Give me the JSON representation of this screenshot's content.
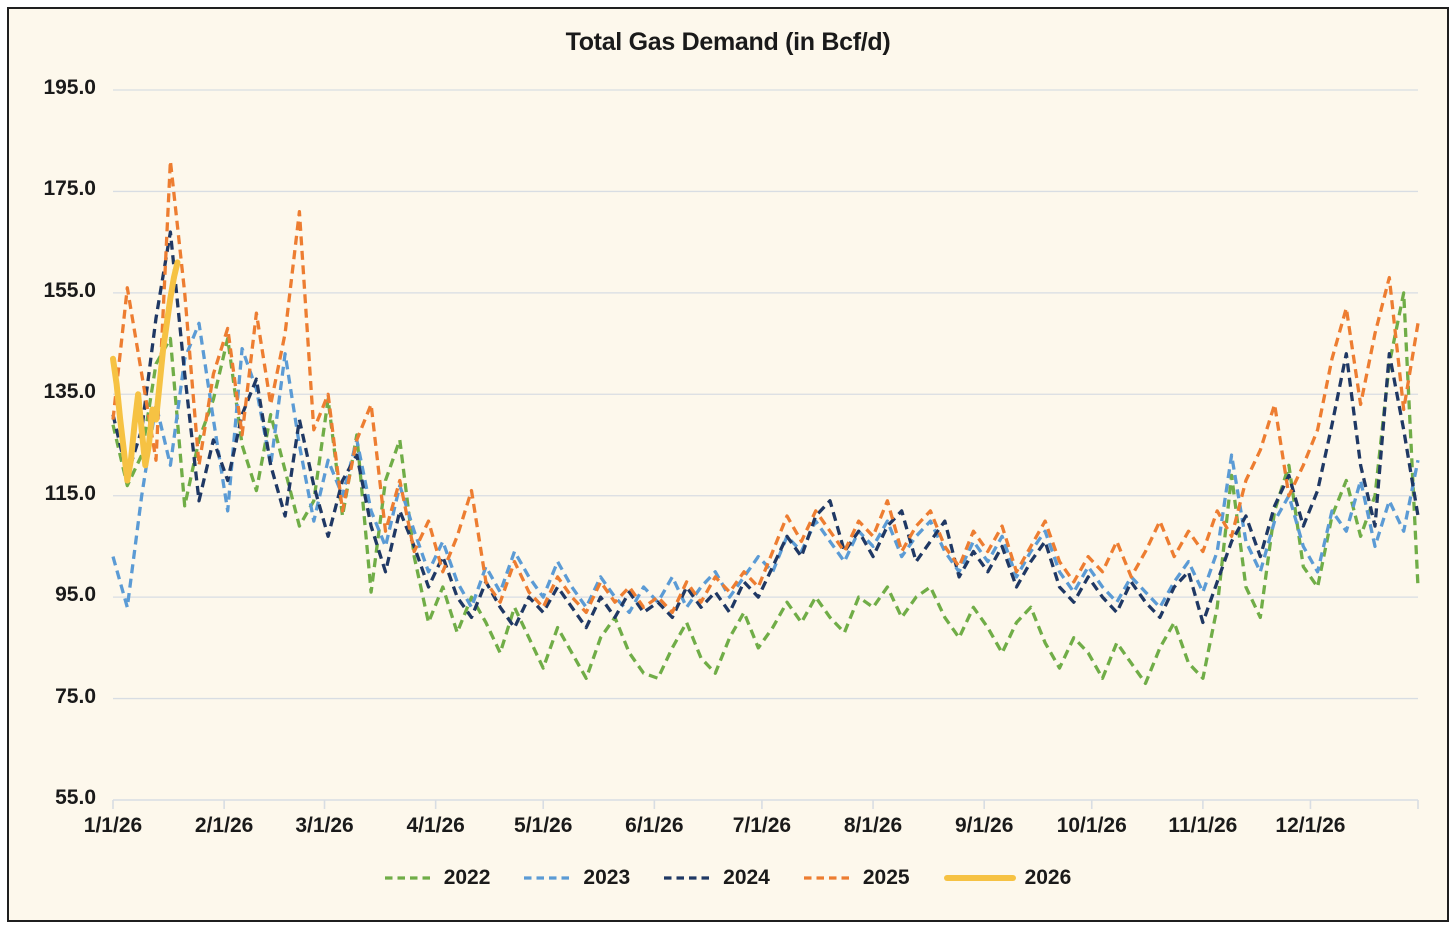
{
  "window": {
    "background": "#ffffff",
    "panel_background": "#FDF8EC",
    "border_color": "#1f1f1f",
    "grid_color": "#D8DDE3",
    "text_color": "#1a1a1a"
  },
  "chart_data": {
    "type": "line",
    "title": "Total Gas Demand (in Bcf/d)",
    "xlabel": "",
    "ylabel": "",
    "grid": true,
    "legend_position": "bottom",
    "ylim": [
      55,
      195
    ],
    "y_ticks": [
      195.0,
      175.0,
      155.0,
      135.0,
      115.0,
      95.0,
      75.0,
      55.0
    ],
    "y_tick_format": "one-decimal",
    "x_range_days": [
      1,
      365
    ],
    "x_tick_days": [
      1,
      32,
      60,
      91,
      121,
      152,
      182,
      213,
      244,
      274,
      305,
      335
    ],
    "x_tick_labels": [
      "1/1/26",
      "2/1/26",
      "3/1/26",
      "4/1/26",
      "5/1/26",
      "6/1/26",
      "7/1/26",
      "8/1/26",
      "9/1/26",
      "10/1/26",
      "11/1/26",
      "12/1/26"
    ],
    "x_axis_end_tick_day": 365,
    "series": [
      {
        "name": "2022",
        "color": "#70AD47",
        "style": "dashed",
        "start_day": 1,
        "day_step": 4,
        "values": [
          129,
          117,
          123,
          141,
          146,
          113,
          126,
          134,
          146,
          125,
          116,
          131,
          120,
          109,
          114,
          134,
          111,
          127,
          96,
          118,
          126,
          103,
          90,
          97,
          88,
          95,
          90,
          84,
          93,
          87,
          81,
          89,
          84,
          79,
          87,
          91,
          84,
          80,
          79,
          85,
          90,
          83,
          80,
          87,
          92,
          85,
          89,
          94,
          90,
          95,
          91,
          88,
          95,
          93,
          97,
          91,
          95,
          97,
          91,
          87,
          93,
          89,
          84,
          90,
          93,
          86,
          81,
          87,
          84,
          79,
          86,
          82,
          78,
          85,
          90,
          82,
          79,
          93,
          119,
          97,
          91,
          112,
          121,
          101,
          97,
          111,
          118,
          107,
          115,
          141,
          155,
          97
        ]
      },
      {
        "name": "2023",
        "color": "#5B9BD5",
        "style": "dashed",
        "start_day": 1,
        "day_step": 4,
        "values": [
          103,
          93,
          115,
          133,
          121,
          142,
          149,
          130,
          112,
          144,
          136,
          121,
          143,
          125,
          110,
          122,
          115,
          126,
          112,
          105,
          117,
          108,
          100,
          106,
          98,
          93,
          101,
          96,
          104,
          99,
          95,
          102,
          97,
          93,
          99,
          95,
          92,
          97,
          94,
          99,
          93,
          97,
          100,
          95,
          99,
          103,
          100,
          107,
          104,
          110,
          106,
          102,
          108,
          105,
          110,
          103,
          107,
          110,
          104,
          100,
          106,
          102,
          107,
          99,
          104,
          108,
          100,
          96,
          101,
          97,
          94,
          99,
          96,
          93,
          98,
          102,
          96,
          104,
          123,
          106,
          100,
          110,
          115,
          105,
          100,
          112,
          108,
          118,
          105,
          114,
          108,
          122
        ]
      },
      {
        "name": "2024",
        "color": "#1F3864",
        "style": "dashed",
        "start_day": 1,
        "day_step": 4,
        "values": [
          131,
          119,
          128,
          150,
          167,
          139,
          114,
          126,
          118,
          131,
          138,
          121,
          111,
          130,
          117,
          107,
          118,
          123,
          109,
          100,
          112,
          105,
          97,
          103,
          95,
          91,
          98,
          93,
          89,
          95,
          92,
          97,
          93,
          89,
          95,
          91,
          96,
          92,
          94,
          91,
          97,
          93,
          96,
          92,
          98,
          95,
          101,
          107,
          103,
          111,
          114,
          104,
          108,
          103,
          109,
          112,
          102,
          106,
          110,
          99,
          104,
          100,
          105,
          97,
          102,
          106,
          97,
          94,
          99,
          95,
          92,
          98,
          94,
          91,
          97,
          100,
          90,
          98,
          106,
          111,
          103,
          113,
          119,
          109,
          116,
          129,
          143,
          121,
          109,
          143,
          128,
          111
        ]
      },
      {
        "name": "2025",
        "color": "#ED7D31",
        "style": "dashed",
        "start_day": 1,
        "day_step": 4,
        "values": [
          130,
          156,
          139,
          122,
          181,
          155,
          121,
          139,
          148,
          127,
          151,
          133,
          147,
          171,
          128,
          135,
          112,
          126,
          133,
          108,
          118,
          104,
          110,
          100,
          107,
          116,
          98,
          94,
          102,
          96,
          93,
          99,
          95,
          92,
          98,
          94,
          97,
          93,
          95,
          92,
          98,
          94,
          99,
          96,
          100,
          97,
          104,
          111,
          106,
          112,
          108,
          104,
          110,
          107,
          114,
          104,
          109,
          112,
          105,
          101,
          108,
          104,
          109,
          100,
          105,
          110,
          102,
          98,
          103,
          100,
          106,
          99,
          104,
          110,
          103,
          108,
          104,
          112,
          107,
          118,
          124,
          133,
          115,
          121,
          128,
          142,
          152,
          133,
          147,
          158,
          132,
          149
        ]
      },
      {
        "name": "2026",
        "color": "#F6C243",
        "style": "solid",
        "start_day": 1,
        "day_step": 1,
        "values": [
          142,
          137,
          130,
          124,
          118,
          122,
          129,
          135,
          128,
          121,
          125,
          132,
          130,
          137,
          144,
          149,
          154,
          158,
          161
        ]
      }
    ]
  }
}
